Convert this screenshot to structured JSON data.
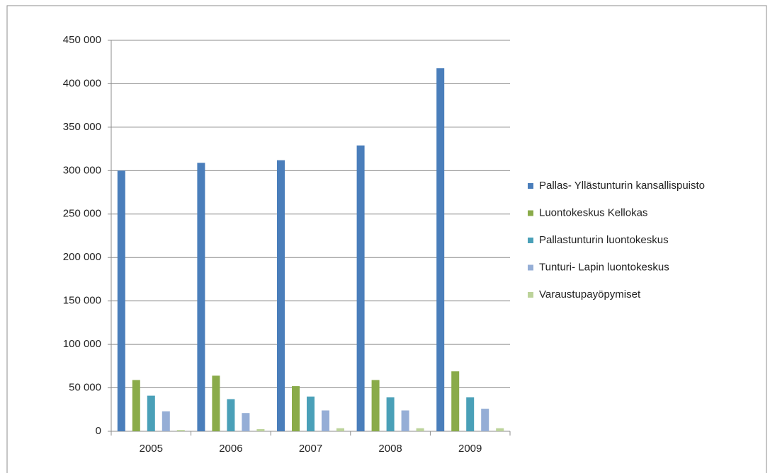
{
  "chart_data": {
    "type": "bar",
    "categories": [
      "2005",
      "2006",
      "2007",
      "2008",
      "2009"
    ],
    "series": [
      {
        "name": "Pallas- Yllästunturin kansallispuisto",
        "color": "#4a7ebb",
        "values": [
          300000,
          309000,
          312000,
          329000,
          418000
        ]
      },
      {
        "name": "Luontokeskus Kellokas",
        "color": "#8aab4a",
        "values": [
          59000,
          64000,
          52000,
          59000,
          69000
        ]
      },
      {
        "name": "Pallastunturin luontokeskus",
        "color": "#4aa0b8",
        "values": [
          41000,
          37000,
          40000,
          39000,
          39000
        ]
      },
      {
        "name": "Tunturi- Lapin luontokeskus",
        "color": "#95aed6",
        "values": [
          23000,
          21000,
          24000,
          24000,
          26000
        ]
      },
      {
        "name": "Varaustupayöpymiset",
        "color": "#bcd39a",
        "values": [
          1500,
          2500,
          3500,
          3500,
          3500
        ]
      }
    ],
    "ylim": [
      0,
      450000
    ],
    "yticks": [
      {
        "value": 0,
        "label": "0"
      },
      {
        "value": 50000,
        "label": "50 000"
      },
      {
        "value": 100000,
        "label": "100 000"
      },
      {
        "value": 150000,
        "label": "150 000"
      },
      {
        "value": 200000,
        "label": "200 000"
      },
      {
        "value": 250000,
        "label": "250 000"
      },
      {
        "value": 300000,
        "label": "300 000"
      },
      {
        "value": 350000,
        "label": "350 000"
      },
      {
        "value": 400000,
        "label": "400 000"
      },
      {
        "value": 450000,
        "label": "450 000"
      }
    ],
    "grid": true,
    "legend": "right"
  }
}
